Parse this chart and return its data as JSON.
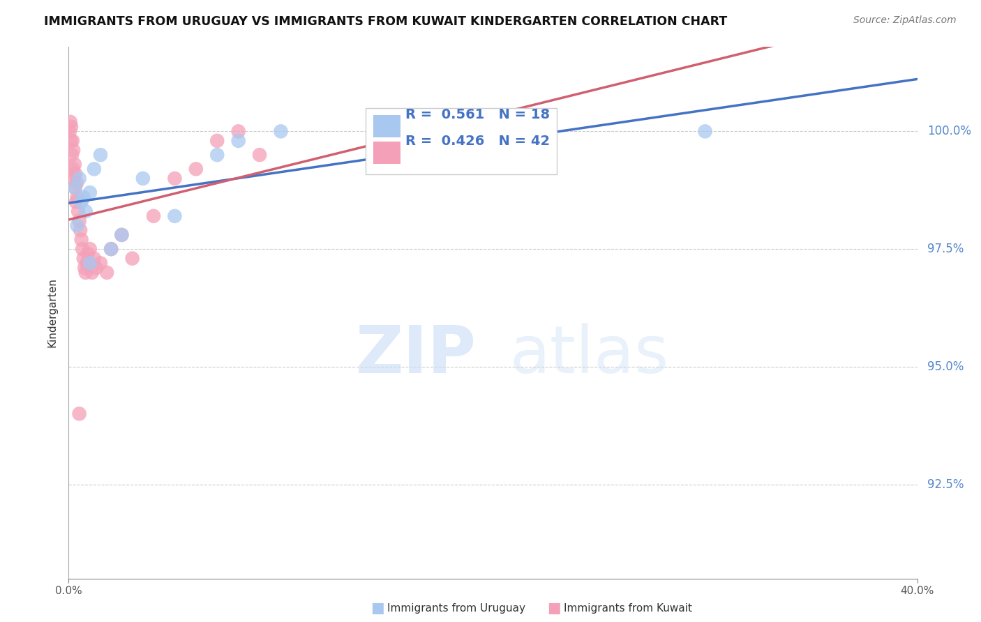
{
  "title": "IMMIGRANTS FROM URUGUAY VS IMMIGRANTS FROM KUWAIT KINDERGARTEN CORRELATION CHART",
  "source": "Source: ZipAtlas.com",
  "xlabel_bottom_left": "0.0%",
  "xlabel_bottom_right": "40.0%",
  "ylabel": "Kindergarten",
  "yticks": [
    92.5,
    95.0,
    97.5,
    100.0
  ],
  "ytick_labels": [
    "92.5%",
    "95.0%",
    "97.5%",
    "100.0%"
  ],
  "xmin": 0.0,
  "xmax": 40.0,
  "ymin": 90.5,
  "ymax": 101.8,
  "legend_R_uruguay": "0.561",
  "legend_N_uruguay": "18",
  "legend_R_kuwait": "0.426",
  "legend_N_kuwait": "42",
  "legend_label_uruguay": "Immigrants from Uruguay",
  "legend_label_kuwait": "Immigrants from Kuwait",
  "color_uruguay": "#a8c8f0",
  "color_kuwait": "#f4a0b8",
  "trendline_color_uruguay": "#4472c4",
  "trendline_color_kuwait": "#d06070",
  "watermark_zip": "ZIP",
  "watermark_atlas": "atlas",
  "uruguay_x": [
    0.3,
    0.5,
    0.6,
    0.8,
    1.0,
    1.2,
    1.5,
    2.0,
    2.5,
    3.5,
    5.0,
    7.0,
    8.0,
    10.0,
    30.0,
    1.0,
    0.4,
    0.7
  ],
  "uruguay_y": [
    98.8,
    99.0,
    98.5,
    98.3,
    98.7,
    99.2,
    99.5,
    97.5,
    97.8,
    99.0,
    98.2,
    99.5,
    99.8,
    100.0,
    100.0,
    97.2,
    98.0,
    98.6
  ],
  "kuwait_x": [
    0.05,
    0.08,
    0.1,
    0.12,
    0.15,
    0.18,
    0.2,
    0.22,
    0.25,
    0.28,
    0.3,
    0.32,
    0.35,
    0.38,
    0.4,
    0.45,
    0.5,
    0.55,
    0.6,
    0.65,
    0.7,
    0.75,
    0.8,
    0.85,
    0.9,
    0.95,
    1.0,
    1.1,
    1.2,
    1.3,
    1.5,
    1.8,
    2.0,
    2.5,
    3.0,
    4.0,
    5.0,
    6.0,
    7.0,
    8.0,
    9.0,
    0.5
  ],
  "kuwait_y": [
    100.0,
    100.2,
    99.8,
    100.1,
    99.5,
    99.8,
    99.2,
    99.6,
    99.0,
    99.3,
    98.8,
    99.1,
    98.5,
    98.9,
    98.6,
    98.3,
    98.1,
    97.9,
    97.7,
    97.5,
    97.3,
    97.1,
    97.0,
    97.2,
    97.4,
    97.2,
    97.5,
    97.0,
    97.3,
    97.1,
    97.2,
    97.0,
    97.5,
    97.8,
    97.3,
    98.2,
    99.0,
    99.2,
    99.8,
    100.0,
    99.5,
    94.0
  ]
}
